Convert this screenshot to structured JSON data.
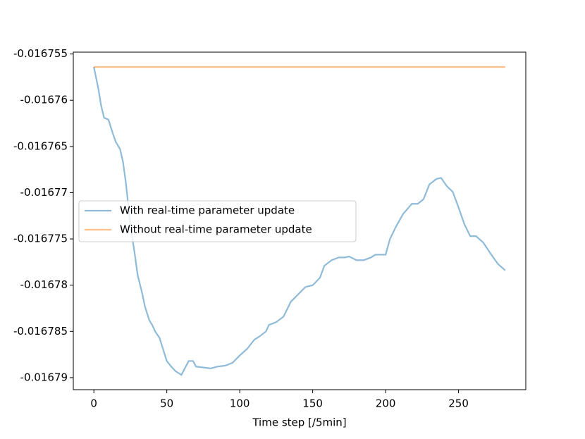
{
  "chart_data": {
    "type": "line",
    "xlabel": "Time step [/5min]",
    "x": [
      0,
      3,
      5,
      7,
      10,
      13,
      15,
      18,
      20,
      22,
      25,
      28,
      30,
      33,
      35,
      38,
      40,
      42,
      45,
      48,
      50,
      53,
      56,
      60,
      63,
      65,
      68,
      70,
      75,
      80,
      85,
      90,
      95,
      100,
      105,
      110,
      113,
      118,
      120,
      125,
      130,
      135,
      140,
      145,
      150,
      155,
      158,
      163,
      168,
      172,
      175,
      180,
      185,
      190,
      193,
      200,
      203,
      207,
      212,
      218,
      222,
      226,
      230,
      235,
      238,
      242,
      246,
      250,
      254,
      258,
      262,
      267,
      272,
      277,
      282
    ],
    "series": [
      {
        "name": "With real-time parameter update",
        "color": "#1f77b4",
        "values": [
          -0.0167564,
          -0.0167587,
          -0.0167606,
          -0.0167619,
          -0.0167621,
          -0.0167636,
          -0.0167645,
          -0.0167653,
          -0.0167667,
          -0.016769,
          -0.0167735,
          -0.0167766,
          -0.0167789,
          -0.0167808,
          -0.0167823,
          -0.0167838,
          -0.0167843,
          -0.016785,
          -0.0167857,
          -0.0167872,
          -0.0167882,
          -0.0167888,
          -0.0167893,
          -0.0167897,
          -0.0167888,
          -0.0167882,
          -0.0167882,
          -0.0167888,
          -0.0167889,
          -0.016789,
          -0.0167888,
          -0.0167887,
          -0.0167884,
          -0.0167876,
          -0.0167869,
          -0.0167859,
          -0.0167856,
          -0.016785,
          -0.0167843,
          -0.016784,
          -0.0167834,
          -0.0167818,
          -0.016781,
          -0.0167802,
          -0.01678,
          -0.0167792,
          -0.0167779,
          -0.0167773,
          -0.016777,
          -0.016777,
          -0.0167769,
          -0.0167773,
          -0.0167773,
          -0.016777,
          -0.0167767,
          -0.0167767,
          -0.016775,
          -0.0167737,
          -0.0167723,
          -0.0167712,
          -0.0167712,
          -0.0167707,
          -0.0167691,
          -0.0167685,
          -0.0167684,
          -0.0167693,
          -0.0167699,
          -0.0167716,
          -0.0167734,
          -0.0167747,
          -0.0167747,
          -0.0167754,
          -0.0167766,
          -0.0167777,
          -0.0167784
        ]
      },
      {
        "name": "Without real-time parameter update",
        "color": "#ff7f0e",
        "values": [
          -0.0167564,
          -0.0167564,
          -0.0167564,
          -0.0167564,
          -0.0167564,
          -0.0167564,
          -0.0167564,
          -0.0167564,
          -0.0167564,
          -0.0167564,
          -0.0167564,
          -0.0167564,
          -0.0167564,
          -0.0167564,
          -0.0167564,
          -0.0167564,
          -0.0167564,
          -0.0167564,
          -0.0167564,
          -0.0167564,
          -0.0167564,
          -0.0167564,
          -0.0167564,
          -0.0167564,
          -0.0167564,
          -0.0167564,
          -0.0167564,
          -0.0167564,
          -0.0167564,
          -0.0167564,
          -0.0167564,
          -0.0167564,
          -0.0167564,
          -0.0167564,
          -0.0167564,
          -0.0167564,
          -0.0167564,
          -0.0167564,
          -0.0167564,
          -0.0167564,
          -0.0167564,
          -0.0167564,
          -0.0167564,
          -0.0167564,
          -0.0167564,
          -0.0167564,
          -0.0167564,
          -0.0167564,
          -0.0167564,
          -0.0167564,
          -0.0167564,
          -0.0167564,
          -0.0167564,
          -0.0167564,
          -0.0167564,
          -0.0167564,
          -0.0167564,
          -0.0167564,
          -0.0167564,
          -0.0167564,
          -0.0167564,
          -0.0167564,
          -0.0167564,
          -0.0167564,
          -0.0167564,
          -0.0167564,
          -0.0167564,
          -0.0167564,
          -0.0167564,
          -0.0167564,
          -0.0167564,
          -0.0167564,
          -0.0167564,
          -0.0167564,
          -0.0167564
        ]
      }
    ],
    "xlim": [
      -14.1,
      296.1
    ],
    "xticks": [
      0,
      50,
      100,
      150,
      200,
      250
    ],
    "ylim": [
      -0.0167913,
      -0.0167548
    ],
    "yticks": [
      -0.016755,
      -0.01676,
      -0.016765,
      -0.01677,
      -0.016775,
      -0.01678,
      -0.016785,
      -0.01679
    ],
    "legend": "center left"
  }
}
